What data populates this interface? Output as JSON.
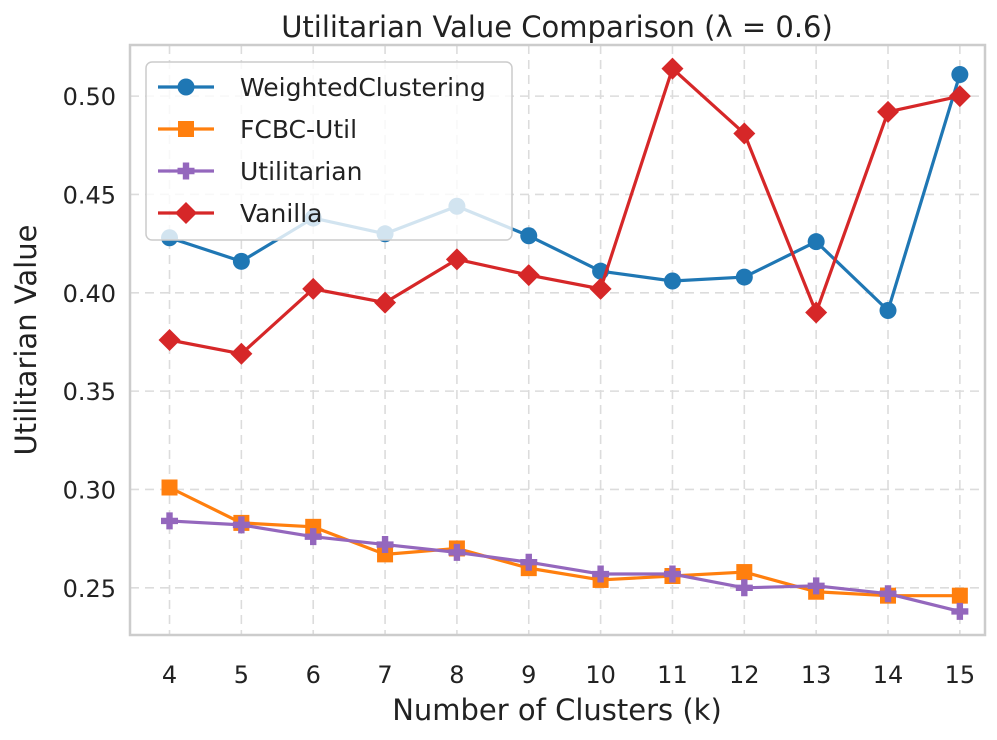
{
  "chart_data": {
    "type": "line",
    "title": "Utilitarian Value Comparison (λ = 0.6)",
    "xlabel": "Number of Clusters (k)",
    "ylabel": "Utilitarian Value",
    "x": [
      4,
      5,
      6,
      7,
      8,
      9,
      10,
      11,
      12,
      13,
      14,
      15
    ],
    "x_tick_labels": [
      "4",
      "5",
      "6",
      "7",
      "8",
      "9",
      "10",
      "11",
      "12",
      "13",
      "14",
      "15"
    ],
    "y_ticks": [
      0.25,
      0.3,
      0.35,
      0.4,
      0.45,
      0.5
    ],
    "y_tick_labels": [
      "0.25",
      "0.30",
      "0.35",
      "0.40",
      "0.45",
      "0.50"
    ],
    "xlim": [
      3.45,
      15.35
    ],
    "ylim": [
      0.226,
      0.526
    ],
    "grid": true,
    "legend_position": "top-left",
    "series": [
      {
        "name": "WeightedClustering",
        "color": "#1f77b4",
        "marker": "circle",
        "values": [
          0.428,
          0.416,
          0.438,
          0.43,
          0.444,
          0.429,
          0.411,
          0.406,
          0.408,
          0.426,
          0.391,
          0.511
        ]
      },
      {
        "name": "FCBC-Util",
        "color": "#ff7f0e",
        "marker": "square",
        "values": [
          0.301,
          0.283,
          0.281,
          0.267,
          0.27,
          0.26,
          0.254,
          0.256,
          0.258,
          0.248,
          0.246,
          0.246
        ]
      },
      {
        "name": "Utilitarian",
        "color": "#9467bd",
        "marker": "plus",
        "values": [
          0.284,
          0.282,
          0.276,
          0.272,
          0.268,
          0.263,
          0.257,
          0.257,
          0.25,
          0.251,
          0.247,
          0.238
        ]
      },
      {
        "name": "Vanilla",
        "color": "#d62728",
        "marker": "diamond",
        "values": [
          0.376,
          0.369,
          0.402,
          0.395,
          0.417,
          0.409,
          0.402,
          0.514,
          0.481,
          0.39,
          0.492,
          0.5
        ]
      }
    ]
  }
}
